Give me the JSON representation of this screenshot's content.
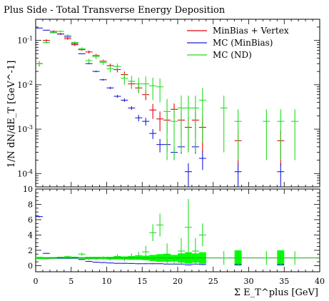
{
  "chart_data": [
    {
      "type": "scatter",
      "title": "Plus Side - Total Transverse Energy Deposition",
      "ylabel": "1/N dN/dE_T [GeV^-1]",
      "yscale": "log",
      "ylim": [
        5e-05,
        0.3
      ],
      "xlim": [
        0,
        40
      ],
      "ytick_labels": [
        "10^-1",
        "10^-2",
        "10^-3",
        "10^-4"
      ],
      "legend_position": "top-right",
      "series": [
        {
          "name": "MinBias + Vertex",
          "color": "#e8000b",
          "points": [
            [
              0.5,
              0.03,
              0.004
            ],
            [
              1.5,
              0.1,
              0.006
            ],
            [
              2.5,
              0.16,
              0.008
            ],
            [
              3.5,
              0.14,
              0.007
            ],
            [
              4.5,
              0.11,
              0.006
            ],
            [
              5.5,
              0.08,
              0.005
            ],
            [
              6.5,
              0.062,
              0.004
            ],
            [
              7.5,
              0.055,
              0.004
            ],
            [
              8.5,
              0.046,
              0.004
            ],
            [
              9.5,
              0.034,
              0.003
            ],
            [
              10.5,
              0.027,
              0.003
            ],
            [
              11.5,
              0.022,
              0.003
            ],
            [
              12.5,
              0.017,
              0.003
            ],
            [
              13.5,
              0.0105,
              0.002
            ],
            [
              14.5,
              0.0085,
              0.002
            ],
            [
              15.5,
              0.006,
              0.0015
            ],
            [
              16.5,
              0.0027,
              0.001
            ],
            [
              17.5,
              0.0017,
              0.0008
            ],
            [
              18.5,
              0.0016,
              0.0008
            ],
            [
              19.5,
              0.0028,
              0.001
            ],
            [
              20.5,
              0.0016,
              0.001
            ],
            [
              21.5,
              0.0011,
              0.0008
            ],
            [
              22.5,
              0.0016,
              0.001
            ],
            [
              23.5,
              0.0011,
              0.0008
            ],
            [
              28.5,
              0.00055,
              0.0004
            ],
            [
              34.5,
              0.00055,
              0.0004
            ]
          ]
        },
        {
          "name": "MC (MinBias)",
          "color": "#1a1adb",
          "points": [
            [
              0.5,
              0.19,
              0.002
            ],
            [
              1.5,
              0.17,
              0.002
            ],
            [
              2.5,
              0.15,
              0.002
            ],
            [
              3.5,
              0.14,
              0.002
            ],
            [
              4.5,
              0.12,
              0.002
            ],
            [
              5.5,
              0.085,
              0.001
            ],
            [
              6.5,
              0.05,
              0.001
            ],
            [
              7.5,
              0.03,
              0.001
            ],
            [
              8.5,
              0.02,
              0.0008
            ],
            [
              9.5,
              0.013,
              0.0006
            ],
            [
              10.5,
              0.0085,
              0.0005
            ],
            [
              11.5,
              0.0055,
              0.0004
            ],
            [
              12.5,
              0.0045,
              0.0004
            ],
            [
              13.5,
              0.003,
              0.0003
            ],
            [
              14.5,
              0.0018,
              0.0003
            ],
            [
              15.5,
              0.0015,
              0.0003
            ],
            [
              16.5,
              0.0008,
              0.0002
            ],
            [
              17.5,
              0.00045,
              0.00015
            ],
            [
              18.5,
              0.00045,
              0.00015
            ],
            [
              19.5,
              0.0003,
              0.0001
            ],
            [
              20.5,
              0.0004,
              0.00012
            ],
            [
              21.5,
              0.00011,
              6e-05
            ],
            [
              22.5,
              0.0004,
              0.00012
            ],
            [
              23.5,
              0.00022,
              0.0001
            ],
            [
              28.5,
              0.00011,
              6e-05
            ],
            [
              34.5,
              0.00011,
              6e-05
            ]
          ]
        },
        {
          "name": "MC (ND)",
          "color": "#22dd22",
          "points": [
            [
              0.5,
              0.03,
              0.003
            ],
            [
              1.5,
              0.09,
              0.005
            ],
            [
              2.5,
              0.15,
              0.007
            ],
            [
              3.5,
              0.16,
              0.008
            ],
            [
              4.5,
              0.13,
              0.007
            ],
            [
              5.5,
              0.09,
              0.006
            ],
            [
              6.5,
              0.065,
              0.005
            ],
            [
              7.5,
              0.035,
              0.004
            ],
            [
              8.5,
              0.043,
              0.005
            ],
            [
              9.5,
              0.032,
              0.004
            ],
            [
              10.5,
              0.023,
              0.004
            ],
            [
              11.5,
              0.026,
              0.004
            ],
            [
              12.5,
              0.014,
              0.004
            ],
            [
              13.5,
              0.012,
              0.004
            ],
            [
              14.5,
              0.0105,
              0.004
            ],
            [
              15.5,
              0.0105,
              0.005
            ],
            [
              16.5,
              0.0095,
              0.005
            ],
            [
              17.5,
              0.009,
              0.005
            ],
            [
              18.5,
              0.0025,
              0.0023
            ],
            [
              19.5,
              0.0015,
              0.0013
            ],
            [
              20.5,
              0.003,
              0.0027
            ],
            [
              21.5,
              0.003,
              0.0027
            ],
            [
              22.5,
              0.003,
              0.0027
            ],
            [
              23.5,
              0.0045,
              0.004
            ],
            [
              26.5,
              0.003,
              0.0027
            ],
            [
              28.5,
              0.0015,
              0.0013
            ],
            [
              32.5,
              0.0015,
              0.0013
            ],
            [
              34.5,
              0.0015,
              0.0013
            ],
            [
              36.5,
              0.0015,
              0.0013
            ]
          ]
        }
      ]
    },
    {
      "type": "scatter",
      "ylabel": "",
      "xlabel": "Σ E_T^plus [GeV]",
      "ylim": [
        -0.8,
        10
      ],
      "xlim": [
        0,
        40
      ],
      "ytick_labels": [
        "0",
        "2",
        "4",
        "6",
        "8",
        "10"
      ],
      "xtick_labels": [
        "0",
        "5",
        "10",
        "15",
        "20",
        "25",
        "30",
        "35",
        "40"
      ],
      "reference_line": 1,
      "series": [
        {
          "name": "MC (MinBias)",
          "color": "#1a1adb",
          "points": [
            [
              0.5,
              6.4,
              0.1
            ],
            [
              1.5,
              1.6,
              0.05
            ],
            [
              2.5,
              1.0,
              0.05
            ],
            [
              3.5,
              1.0,
              0.05
            ],
            [
              4.5,
              1.0,
              0.05
            ],
            [
              5.5,
              1.0,
              0.05
            ],
            [
              6.5,
              0.8,
              0.05
            ],
            [
              7.5,
              0.55,
              0.05
            ],
            [
              8.5,
              0.45,
              0.05
            ],
            [
              9.5,
              0.4,
              0.05
            ],
            [
              10.5,
              0.35,
              0.05
            ],
            [
              11.5,
              0.3,
              0.05
            ],
            [
              12.5,
              0.3,
              0.05
            ],
            [
              13.5,
              0.28,
              0.05
            ],
            [
              14.5,
              0.25,
              0.05
            ],
            [
              15.5,
              0.25,
              0.05
            ],
            [
              16.5,
              0.25,
              0.05
            ],
            [
              17.5,
              0.25,
              0.05
            ],
            [
              18.5,
              0.2,
              0.05
            ],
            [
              19.5,
              0.2,
              0.05
            ],
            [
              20.5,
              0.2,
              0.05
            ],
            [
              21.5,
              0.1,
              0.05
            ],
            [
              22.5,
              0.2,
              0.05
            ],
            [
              23.5,
              0.15,
              0.05
            ],
            [
              28.5,
              0.15,
              0.05
            ],
            [
              34.5,
              0.15,
              0.05
            ]
          ]
        },
        {
          "name": "MC (ND)",
          "color": "#22dd22",
          "points": [
            [
              0.5,
              1.0,
              0.1
            ],
            [
              1.5,
              0.9,
              0.1
            ],
            [
              2.5,
              0.95,
              0.1
            ],
            [
              3.5,
              1.1,
              0.1
            ],
            [
              4.5,
              1.2,
              0.1
            ],
            [
              5.5,
              1.1,
              0.1
            ],
            [
              6.5,
              1.5,
              0.2
            ],
            [
              7.5,
              0.9,
              0.2
            ],
            [
              8.5,
              0.9,
              0.2
            ],
            [
              9.5,
              1.0,
              0.2
            ],
            [
              10.5,
              0.85,
              0.2
            ],
            [
              11.5,
              1.2,
              0.3
            ],
            [
              12.5,
              0.85,
              0.3
            ],
            [
              13.5,
              1.2,
              0.4
            ],
            [
              14.5,
              1.3,
              0.5
            ],
            [
              15.5,
              1.8,
              0.8
            ],
            [
              16.5,
              4.3,
              1.1
            ],
            [
              17.5,
              5.3,
              1.5
            ],
            [
              18.5,
              1.5,
              1.4
            ],
            [
              19.5,
              0.6,
              0.5
            ],
            [
              20.5,
              1.9,
              1.7
            ],
            [
              21.5,
              5.0,
              3.7
            ],
            [
              22.5,
              1.9,
              1.7
            ],
            [
              23.5,
              4.0,
              1.5
            ],
            [
              26.5,
              1.0,
              0.9
            ],
            [
              28.5,
              1.0,
              0.9
            ],
            [
              32.5,
              1.0,
              0.9
            ],
            [
              34.5,
              1.0,
              0.9
            ],
            [
              36.5,
              1.0,
              0.9
            ]
          ]
        },
        {
          "name": "MinBias + Vertex",
          "color": "#00ff00",
          "points": [
            [
              0.5,
              1.0,
              0.15
            ],
            [
              1.5,
              1.0,
              0.1
            ],
            [
              2.5,
              1.0,
              0.1
            ],
            [
              3.5,
              1.0,
              0.1
            ],
            [
              4.5,
              1.0,
              0.1
            ],
            [
              5.5,
              1.0,
              0.1
            ],
            [
              6.5,
              1.0,
              0.1
            ],
            [
              7.5,
              1.0,
              0.15
            ],
            [
              8.5,
              1.0,
              0.15
            ],
            [
              9.5,
              1.0,
              0.15
            ],
            [
              10.5,
              1.0,
              0.15
            ],
            [
              11.5,
              1.0,
              0.2
            ],
            [
              12.5,
              1.0,
              0.2
            ],
            [
              13.5,
              1.0,
              0.25
            ],
            [
              14.5,
              1.0,
              0.25
            ],
            [
              15.5,
              1.0,
              0.3
            ],
            [
              16.5,
              1.0,
              0.4
            ],
            [
              17.5,
              1.0,
              0.5
            ],
            [
              18.5,
              1.0,
              0.5
            ],
            [
              19.5,
              1.0,
              0.4
            ],
            [
              20.5,
              1.0,
              0.6
            ],
            [
              21.5,
              1.0,
              0.75
            ],
            [
              22.5,
              1.0,
              0.6
            ],
            [
              23.5,
              1.0,
              0.75
            ],
            [
              28.5,
              1.0,
              1.0
            ],
            [
              34.5,
              1.0,
              1.0
            ]
          ]
        }
      ]
    }
  ]
}
